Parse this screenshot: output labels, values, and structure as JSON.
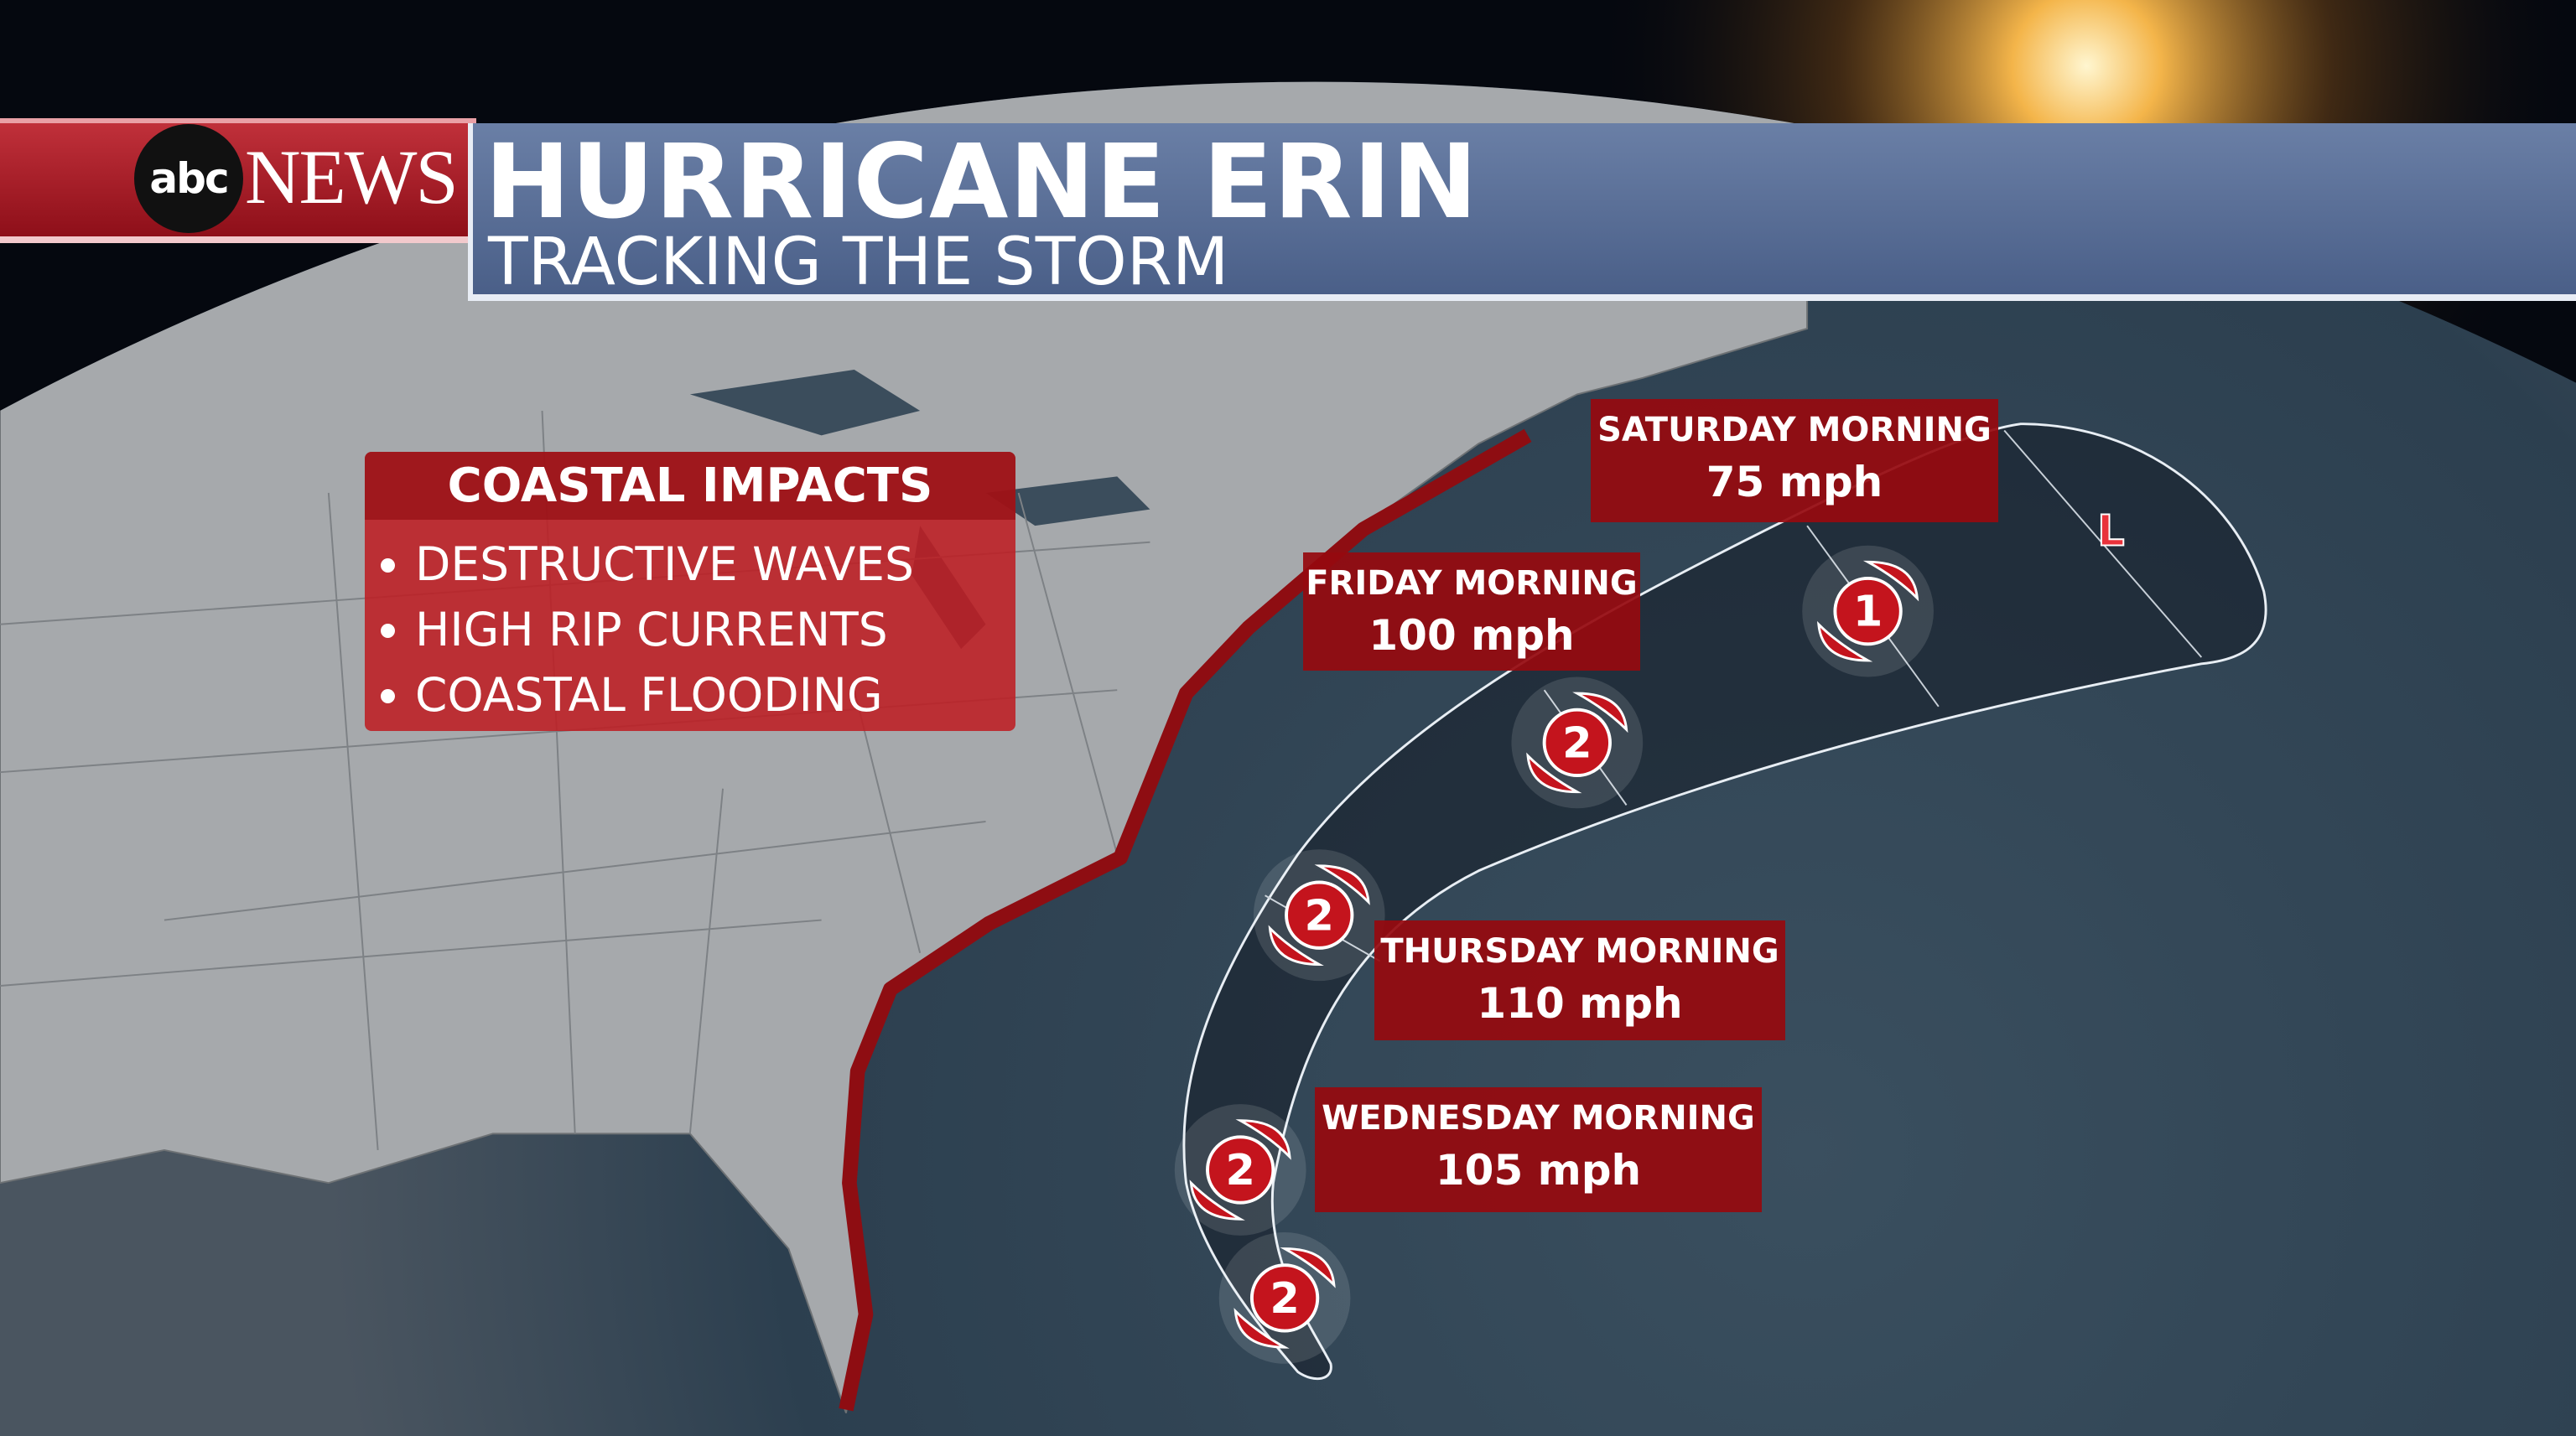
{
  "header": {
    "network_logo": "abc",
    "network_name": "NEWS",
    "title": "HURRICANE ERIN",
    "subtitle": "TRACKING THE STORM"
  },
  "coastal_impacts": {
    "title": "COASTAL IMPACTS",
    "items": [
      "DESTRUCTIVE WAVES",
      "HIGH RIP CURRENTS",
      "COASTAL FLOODING"
    ]
  },
  "forecast": [
    {
      "day": "WEDNESDAY MORNING",
      "wind": "105 mph"
    },
    {
      "day": "THURSDAY MORNING",
      "wind": "110 mph"
    },
    {
      "day": "FRIDAY MORNING",
      "wind": "100 mph"
    },
    {
      "day": "SATURDAY MORNING",
      "wind": "75 mph"
    }
  ],
  "storm_markers": [
    {
      "category": "2"
    },
    {
      "category": "2"
    },
    {
      "category": "2"
    },
    {
      "category": "2"
    },
    {
      "category": "1"
    },
    {
      "category": "L"
    }
  ],
  "colors": {
    "brand_red": "#b3141e",
    "title_blue": "#566b94",
    "ocean": "#2f4252",
    "land": "#a9acaf",
    "coastal_impact": "#8e0d12"
  }
}
